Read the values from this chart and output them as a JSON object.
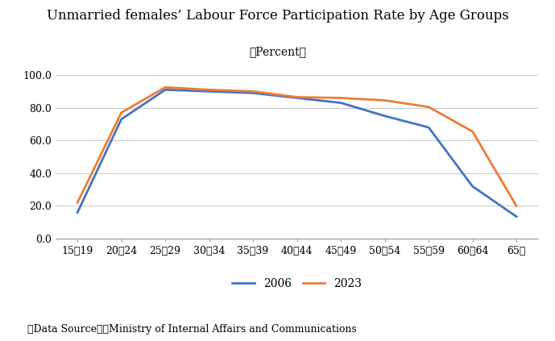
{
  "title": "Unmarried females’ Labour Force Participation Rate by Age Groups",
  "subtitle": "（Percent）",
  "footnote": "（Data Source）　Ministry of Internal Affairs and Communications",
  "categories": [
    "15～19",
    "20～24",
    "25～29",
    "30～34",
    "35～39",
    "40～44",
    "45～49",
    "50～54",
    "55～59",
    "60～64",
    "65～"
  ],
  "series": [
    {
      "label": "2006",
      "color": "#4472C4",
      "values": [
        16.0,
        73.0,
        91.0,
        90.0,
        89.0,
        86.0,
        83.0,
        75.0,
        68.0,
        32.0,
        13.5
      ]
    },
    {
      "label": "2023",
      "color": "#ED7D31",
      "values": [
        22.0,
        77.0,
        92.5,
        91.0,
        90.0,
        86.5,
        86.0,
        84.5,
        80.5,
        65.5,
        20.0
      ]
    }
  ],
  "ylim": [
    0.0,
    100.0
  ],
  "yticks": [
    0.0,
    20.0,
    40.0,
    60.0,
    80.0,
    100.0
  ],
  "background_color": "#ffffff",
  "grid_color": "#cccccc",
  "line_width": 2.0,
  "title_fontsize": 12,
  "subtitle_fontsize": 10,
  "axis_fontsize": 9,
  "legend_fontsize": 10,
  "footnote_fontsize": 9
}
